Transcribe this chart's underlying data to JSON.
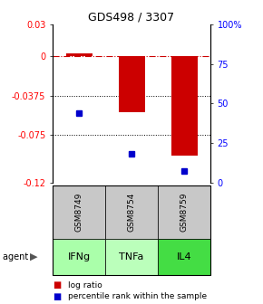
{
  "title": "GDS498 / 3307",
  "samples": [
    "GSM8749",
    "GSM8754",
    "GSM8759"
  ],
  "agents": [
    "IFNg",
    "TNFa",
    "IL4"
  ],
  "log_ratios": [
    0.002,
    -0.053,
    -0.095
  ],
  "percentile_ranks": [
    44,
    18,
    7
  ],
  "ylim_left": [
    -0.12,
    0.03
  ],
  "ylim_right": [
    0,
    100
  ],
  "yticks_left": [
    0.03,
    0,
    -0.0375,
    -0.075,
    -0.12
  ],
  "yticks_right": [
    100,
    75,
    50,
    25,
    0
  ],
  "ytick_labels_left": [
    "0.03",
    "0",
    "-0.0375",
    "-0.075",
    "-0.12"
  ],
  "ytick_labels_right": [
    "100%",
    "75",
    "50",
    "25",
    "0"
  ],
  "hlines_dotted": [
    -0.0375,
    -0.075
  ],
  "bar_color": "#cc0000",
  "dot_color": "#0000cc",
  "sample_bg_color": "#c8c8c8",
  "agent_colors": [
    "#aaffaa",
    "#bbffbb",
    "#44dd44"
  ],
  "bar_width": 0.5,
  "legend_log_ratio_color": "#cc0000",
  "legend_percentile_color": "#0000cc",
  "title_fontsize": 9,
  "tick_fontsize": 7,
  "label_fontsize": 7,
  "agent_fontsize": 8
}
